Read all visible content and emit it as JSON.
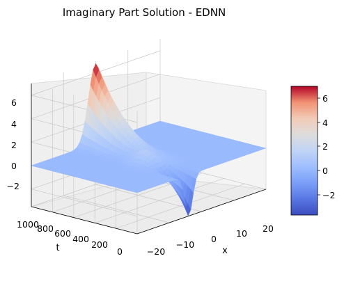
{
  "chart_data": {
    "type": "surface",
    "title": "Imaginary Part Solution - EDNN",
    "xlabel": "x",
    "ylabel": "t",
    "zlabel": "",
    "x_range": [
      -20,
      20
    ],
    "t_range": [
      0,
      1000
    ],
    "z_range": [
      -3.5,
      7
    ],
    "x_ticks": [
      "−20",
      "−10",
      "0",
      "10",
      "20"
    ],
    "t_ticks": [
      "0",
      "200",
      "400",
      "600",
      "800",
      "1000"
    ],
    "z_ticks": [
      "−2",
      "0",
      "2",
      "4",
      "6"
    ],
    "colormap": "coolwarm",
    "colorbar": {
      "range": [
        -3.8,
        6.8
      ],
      "ticks": [
        "−2",
        "0",
        "2",
        "4",
        "6"
      ]
    },
    "grid": true,
    "surface_features": {
      "main_peak": {
        "x": 0,
        "t": 1000,
        "z": 6.8
      },
      "trough": {
        "x": -4,
        "t": 0,
        "z": -3.5
      },
      "secondary_bump": {
        "x": -4,
        "t": 400,
        "z": 1.2
      },
      "baseline": 0
    }
  }
}
